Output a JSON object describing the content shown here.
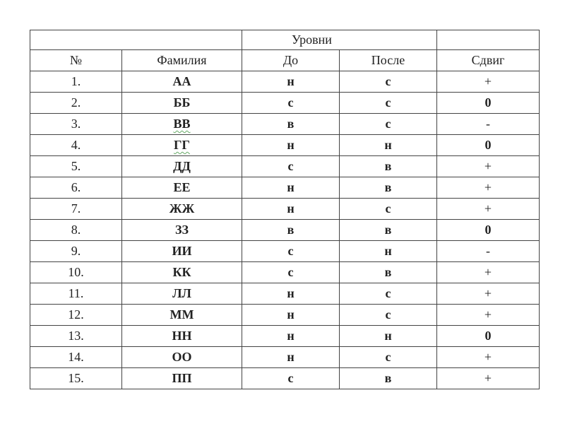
{
  "header": {
    "group_label": "Уровни",
    "columns": {
      "num": "№",
      "surname": "Фамилия",
      "before": "До",
      "after": "После",
      "shift": "Сдвиг"
    }
  },
  "rows": [
    {
      "num": "1.",
      "surname": "АА",
      "before": "н",
      "after": "с",
      "shift": "+"
    },
    {
      "num": "2.",
      "surname": "ББ",
      "before": "с",
      "after": "с",
      "shift": "0"
    },
    {
      "num": "3.",
      "surname": "ВВ",
      "before": "в",
      "after": "с",
      "shift": "-"
    },
    {
      "num": "4.",
      "surname": "ГГ",
      "before": "н",
      "after": "н",
      "shift": "0"
    },
    {
      "num": "5.",
      "surname": "ДД",
      "before": "с",
      "after": "в",
      "shift": "+"
    },
    {
      "num": "6.",
      "surname": "ЕЕ",
      "before": "н",
      "after": "в",
      "shift": "+"
    },
    {
      "num": "7.",
      "surname": "ЖЖ",
      "before": "н",
      "after": "с",
      "shift": "+"
    },
    {
      "num": "8.",
      "surname": "ЗЗ",
      "before": "в",
      "after": "в",
      "shift": "0"
    },
    {
      "num": "9.",
      "surname": "ИИ",
      "before": "с",
      "after": "н",
      "shift": "-"
    },
    {
      "num": "10.",
      "surname": "КК",
      "before": "с",
      "after": "в",
      "shift": "+"
    },
    {
      "num": "11.",
      "surname": "ЛЛ",
      "before": "н",
      "after": "с",
      "shift": "+"
    },
    {
      "num": "12.",
      "surname": "ММ",
      "before": "н",
      "after": "с",
      "shift": "+"
    },
    {
      "num": "13.",
      "surname": "НН",
      "before": "н",
      "after": "н",
      "shift": "0"
    },
    {
      "num": "14.",
      "surname": "ОО",
      "before": "н",
      "after": "с",
      "shift": "+"
    },
    {
      "num": "15.",
      "surname": "ПП",
      "before": "с",
      "after": "в",
      "shift": "+"
    }
  ]
}
